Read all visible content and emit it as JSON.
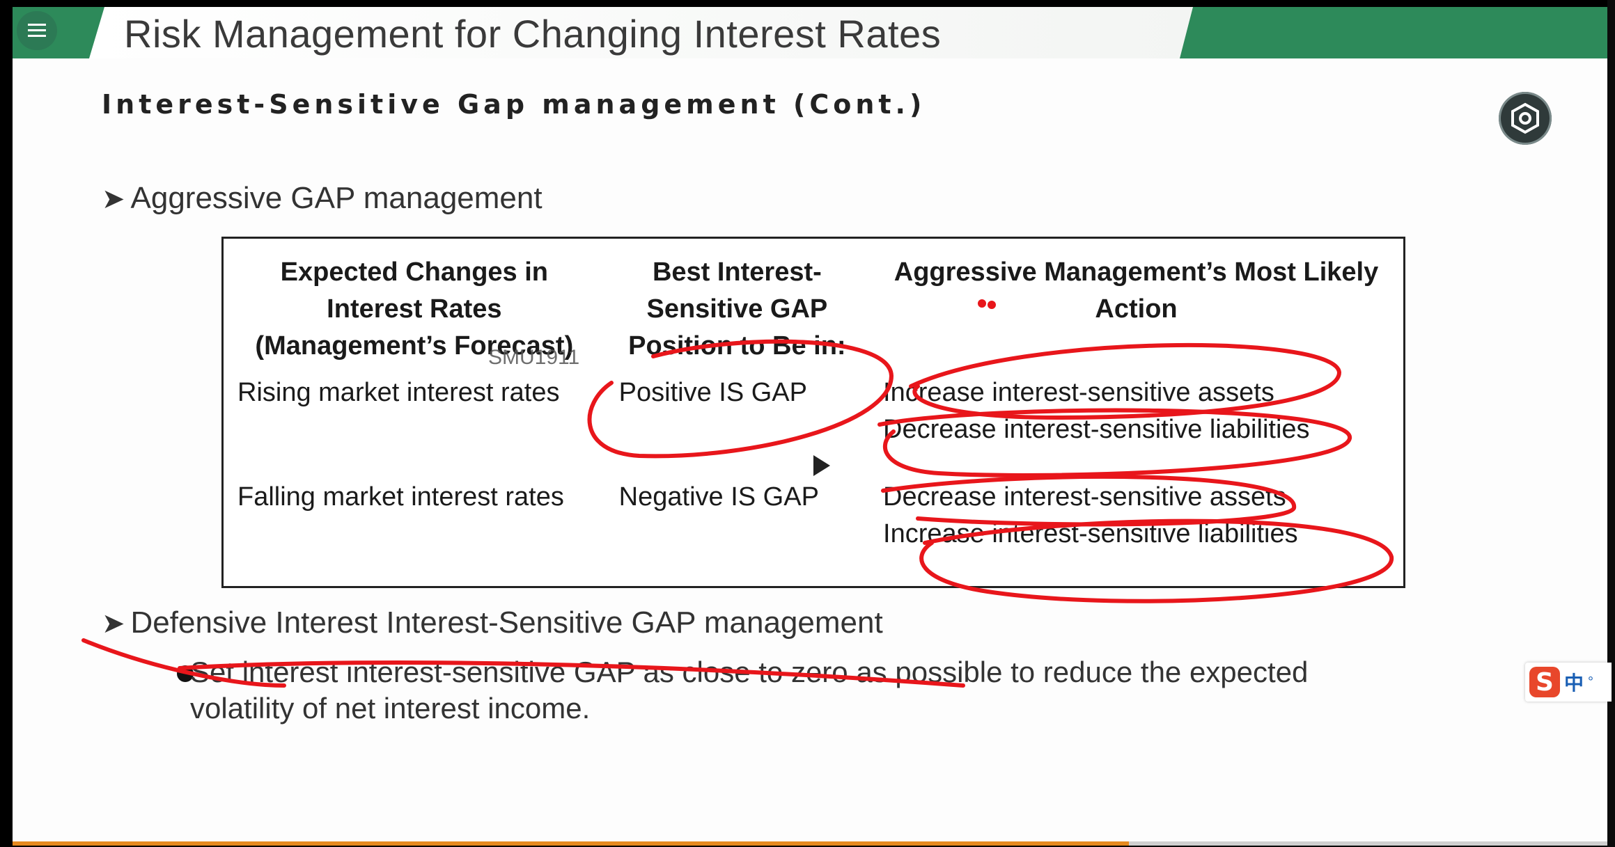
{
  "header": {
    "title": "Risk Management for Changing Interest Rates",
    "menu_icon": "hamburger-menu-icon"
  },
  "slide": {
    "subtitle": "Interest-Sensitive Gap management (Cont.)",
    "bullet1": "Aggressive GAP management",
    "bullet2": "Defensive Interest Interest-Sensitive GAP management",
    "sub_bullet_line1": "Set interest interest-sensitive GAP as close to zero as possible to reduce the expected",
    "sub_bullet_line2": "volatility of net interest income."
  },
  "table": {
    "headers": [
      [
        "Expected Changes in",
        "Interest Rates",
        "(Management’s Forecast)"
      ],
      [
        "Best Interest-",
        "Sensitive GAP",
        "Position to Be in:"
      ],
      [
        "Aggressive Management’s Most Likely",
        "Action"
      ]
    ],
    "rows": [
      {
        "forecast": "Rising market interest rates",
        "position": "Positive IS GAP",
        "actions": [
          "Increase interest-sensitive assets",
          "Decrease interest-sensitive liabilities"
        ]
      },
      {
        "forecast": "Falling market interest rates",
        "position": "Negative IS GAP",
        "actions": [
          "Decrease interest-sensitive assets",
          "Increase interest-sensitive liabilities"
        ]
      }
    ]
  },
  "overlay": {
    "watermark": "SMU1911",
    "play_icon": "play-icon",
    "settings_icon": "settings-icon",
    "ime_logo": "S",
    "ime_lang": "中",
    "ime_dot": "°"
  },
  "video": {
    "progress": 0.7
  },
  "colors": {
    "header_green": "#2d8a5a",
    "annotation_red": "#e8161b",
    "progress_orange": "#e58a1f"
  }
}
